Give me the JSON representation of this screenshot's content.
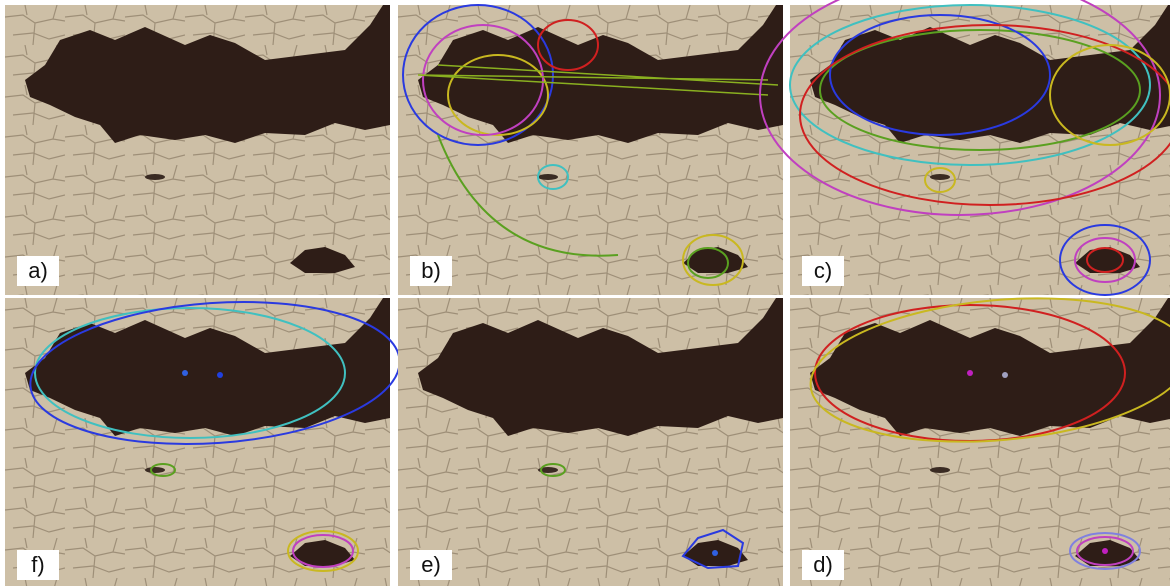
{
  "panels": [
    {
      "label": "a)"
    },
    {
      "label": "b)"
    },
    {
      "label": "c)"
    },
    {
      "label": "f)"
    },
    {
      "label": "e)"
    },
    {
      "label": "d)"
    }
  ]
}
